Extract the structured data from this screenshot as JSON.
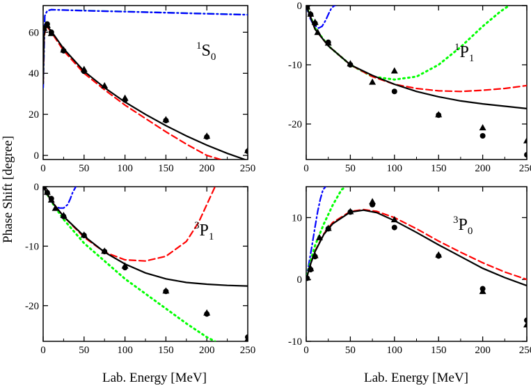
{
  "figure": {
    "ylabel": "Phase Shift [degree]",
    "xlabel_left": "Lab. Energy [MeV]",
    "xlabel_right": "Lab. Energy [MeV]"
  },
  "colors": {
    "black": "#000000",
    "red": "#ff0000",
    "green": "#00ff00",
    "blue": "#0000ff",
    "teal": "#009999"
  },
  "chart_data": [
    {
      "type": "line",
      "id": "p1s0",
      "title_sup": "1",
      "title_main": "S",
      "title_sub": "0",
      "xlim": [
        0,
        250
      ],
      "ylim": [
        -2,
        73
      ],
      "xticks": [
        0,
        50,
        100,
        150,
        200,
        250
      ],
      "yticks": [
        0,
        20,
        40,
        60
      ],
      "xlabel": "Lab. Energy [MeV]",
      "ylabel": "Phase Shift [degree]",
      "series": [
        {
          "name": "teal dash-dot",
          "style": "dashdot",
          "color": "#009999",
          "x": [
            0,
            2,
            5,
            10,
            50,
            100,
            150,
            200,
            250
          ],
          "y": [
            33,
            68,
            70.5,
            71,
            70.6,
            70.1,
            69.6,
            69.1,
            68.6
          ]
        },
        {
          "name": "blue dash-dot",
          "style": "dashdot",
          "color": "#0000ff",
          "x": [
            0,
            2,
            5,
            10,
            50,
            100,
            150,
            200,
            250
          ],
          "y": [
            33,
            68,
            70.5,
            71,
            70.5,
            70,
            69.5,
            69,
            68.5
          ]
        },
        {
          "name": "red dashed",
          "style": "dashed",
          "color": "#ff0000",
          "x": [
            0,
            1,
            3,
            5,
            10,
            25,
            50,
            75,
            100,
            125,
            150,
            175,
            200,
            225,
            250
          ],
          "y": [
            35,
            57,
            62,
            62.5,
            60,
            51,
            40,
            32,
            24.5,
            18,
            11.5,
            5.5,
            0,
            -3,
            -6
          ]
        },
        {
          "name": "black solid",
          "style": "solid",
          "color": "#000000",
          "x": [
            0,
            1,
            3,
            5,
            10,
            25,
            50,
            75,
            100,
            125,
            150,
            175,
            200,
            225,
            250
          ],
          "y": [
            35,
            58,
            62.5,
            63,
            60.5,
            52,
            41,
            33,
            26,
            20,
            14.5,
            9.5,
            5,
            1,
            -2.5
          ]
        }
      ],
      "points_circle": {
        "x": [
          1,
          5,
          10,
          25,
          50,
          100,
          150,
          200,
          250
        ],
        "y": [
          62,
          64,
          60,
          51,
          41,
          27,
          17,
          9,
          2
        ]
      },
      "points_triangle": {
        "x": [
          1,
          5,
          10,
          25,
          50,
          75,
          100,
          150,
          200,
          250
        ],
        "y": [
          62,
          63.5,
          59.5,
          51.5,
          42,
          34,
          28,
          17.5,
          9.5,
          2.5
        ]
      }
    },
    {
      "type": "line",
      "id": "p1p1",
      "title_sup": "1",
      "title_main": "P",
      "title_sub": "1",
      "xlim": [
        0,
        250
      ],
      "ylim": [
        -26,
        0
      ],
      "xticks": [
        0,
        50,
        100,
        150,
        200,
        250
      ],
      "yticks": [
        0,
        -10,
        -20
      ],
      "xlabel": "Lab. Energy [MeV]",
      "ylabel": "Phase Shift [degree]",
      "series": [
        {
          "name": "blue dash-dot",
          "style": "dashdot",
          "color": "#0000ff",
          "x": [
            0,
            3,
            8,
            14,
            18,
            22,
            25,
            28,
            31,
            33
          ],
          "y": [
            0,
            -1.7,
            -3.2,
            -3.8,
            -3.5,
            -2.5,
            -1.5,
            -0.6,
            -0.1,
            0
          ]
        },
        {
          "name": "green dotted",
          "style": "dotted",
          "color": "#00ff00",
          "x": [
            0,
            10,
            25,
            50,
            75,
            100,
            125,
            150,
            175,
            200,
            220,
            230
          ],
          "y": [
            0,
            -3.8,
            -6.8,
            -10,
            -12,
            -12.5,
            -12,
            -10,
            -7,
            -3.5,
            -1,
            0
          ]
        },
        {
          "name": "red dashed",
          "style": "dashed",
          "color": "#ff0000",
          "x": [
            0,
            10,
            25,
            50,
            75,
            100,
            125,
            150,
            175,
            200,
            225,
            250
          ],
          "y": [
            0,
            -4,
            -6.8,
            -10,
            -12,
            -13.3,
            -14,
            -14.4,
            -14.5,
            -14.3,
            -14,
            -13.5
          ]
        },
        {
          "name": "black solid",
          "style": "solid",
          "color": "#000000",
          "x": [
            0,
            10,
            25,
            50,
            75,
            100,
            125,
            150,
            175,
            200,
            225,
            250
          ],
          "y": [
            0,
            -4,
            -6.8,
            -10,
            -11.8,
            -13.3,
            -14.5,
            -15.4,
            -16.1,
            -16.6,
            -17,
            -17.4
          ]
        }
      ],
      "points_circle": {
        "x": [
          1,
          5,
          10,
          25,
          50,
          100,
          150,
          200,
          250
        ],
        "y": [
          -0.2,
          -1.5,
          -3,
          -6.2,
          -10,
          -14.5,
          -18.5,
          -22,
          -25.2
        ]
      },
      "points_triangle": {
        "x": [
          1,
          5,
          10,
          13,
          25,
          50,
          75,
          100,
          150,
          200,
          250
        ],
        "y": [
          -0.2,
          -1.4,
          -2.8,
          -4.5,
          -6.3,
          -9.8,
          -12.9,
          -11,
          -18.4,
          -20.6,
          -22.8
        ]
      }
    },
    {
      "type": "line",
      "id": "p3p1",
      "title_sup": "3",
      "title_main": "P",
      "title_sub": "1",
      "xlim": [
        0,
        250
      ],
      "ylim": [
        -26,
        0
      ],
      "xticks": [
        0,
        50,
        100,
        150,
        200,
        250
      ],
      "yticks": [
        0,
        -10,
        -20
      ],
      "xlabel": "Lab. Energy [MeV]",
      "ylabel": "Phase Shift [degree]",
      "series": [
        {
          "name": "blue dash-dot",
          "style": "dashdot",
          "color": "#0000ff",
          "x": [
            0,
            5,
            10,
            15,
            20,
            25,
            30,
            33,
            36,
            40
          ],
          "y": [
            0,
            -1.3,
            -2.5,
            -3.3,
            -3.6,
            -3.6,
            -3,
            -2.1,
            -1,
            0
          ]
        },
        {
          "name": "green dotted",
          "style": "dotted",
          "color": "#00ff00",
          "x": [
            0,
            10,
            25,
            50,
            75,
            100,
            125,
            150,
            175,
            200,
            210
          ],
          "y": [
            0,
            -2.5,
            -5.5,
            -9.5,
            -12.5,
            -15.5,
            -18,
            -20.5,
            -23,
            -25.3,
            -26
          ]
        },
        {
          "name": "red dashed",
          "style": "dashed",
          "color": "#ff0000",
          "x": [
            0,
            10,
            25,
            50,
            75,
            100,
            125,
            150,
            175,
            190,
            200,
            210
          ],
          "y": [
            0,
            -2.4,
            -5,
            -8.5,
            -11,
            -12.3,
            -12.5,
            -11.7,
            -9.2,
            -6,
            -3,
            0
          ]
        },
        {
          "name": "black solid",
          "style": "solid",
          "color": "#000000",
          "x": [
            0,
            10,
            25,
            50,
            75,
            100,
            125,
            150,
            175,
            200,
            225,
            250
          ],
          "y": [
            0,
            -2.4,
            -5,
            -8.3,
            -11,
            -13,
            -14.5,
            -15.5,
            -16.1,
            -16.4,
            -16.6,
            -16.7
          ]
        }
      ],
      "points_circle": {
        "x": [
          1,
          5,
          10,
          25,
          50,
          75,
          100,
          150,
          200,
          250
        ],
        "y": [
          0,
          -1,
          -2,
          -5,
          -8.2,
          -10.9,
          -13.6,
          -17.6,
          -21.4,
          -25.3
        ]
      },
      "points_triangle": {
        "x": [
          1,
          5,
          10,
          15,
          25,
          50,
          75,
          100,
          150,
          200,
          250
        ],
        "y": [
          0,
          -0.9,
          -2.2,
          -3.6,
          -4.8,
          -8.1,
          -10.8,
          -13.3,
          -17.5,
          -21.2,
          -25.6
        ]
      }
    },
    {
      "type": "line",
      "id": "p3p0",
      "title_sup": "3",
      "title_main": "P",
      "title_sub": "0",
      "xlim": [
        0,
        250
      ],
      "ylim": [
        -10,
        15
      ],
      "xticks": [
        0,
        50,
        100,
        150,
        200,
        250
      ],
      "yticks": [
        10,
        0,
        -10
      ],
      "xlabel": "Lab. Energy [MeV]",
      "ylabel": "Phase Shift [degree]",
      "series": [
        {
          "name": "blue dash-dot",
          "style": "dashdot",
          "color": "#0000ff",
          "x": [
            0,
            3,
            6,
            10,
            13,
            16,
            19,
            22
          ],
          "y": [
            0,
            2.5,
            5,
            8.5,
            11,
            13,
            14.5,
            15
          ]
        },
        {
          "name": "green dotted",
          "style": "dotted",
          "color": "#00ff00",
          "x": [
            0,
            5,
            10,
            20,
            30,
            40,
            45
          ],
          "y": [
            0,
            3,
            5.5,
            9,
            12,
            14.5,
            15
          ]
        },
        {
          "name": "red dashed",
          "style": "dashed",
          "color": "#ff0000",
          "x": [
            0,
            5,
            10,
            20,
            30,
            50,
            65,
            80,
            100,
            125,
            150,
            175,
            200,
            225,
            250
          ],
          "y": [
            0,
            2.5,
            4.6,
            7.4,
            9.2,
            11,
            11.3,
            11,
            10,
            8.2,
            6.2,
            4.4,
            2.7,
            1.2,
            0
          ]
        },
        {
          "name": "black solid",
          "style": "solid",
          "color": "#000000",
          "x": [
            0,
            5,
            10,
            20,
            30,
            50,
            65,
            80,
            100,
            125,
            150,
            175,
            200,
            225,
            250
          ],
          "y": [
            0,
            2.5,
            4.5,
            7.3,
            9,
            10.9,
            11.2,
            10.8,
            9.5,
            7.6,
            5.6,
            3.7,
            1.8,
            0.3,
            -1
          ]
        }
      ],
      "points_circle": {
        "x": [
          1,
          5,
          10,
          25,
          50,
          75,
          100,
          150,
          200,
          250
        ],
        "y": [
          0.2,
          1.6,
          3.7,
          8.2,
          10.9,
          12.1,
          8.4,
          3.8,
          -1.5,
          -6.6
        ]
      },
      "points_triangle": {
        "x": [
          1,
          5,
          10,
          15,
          25,
          50,
          75,
          100,
          150,
          200,
          250
        ],
        "y": [
          0.3,
          1.8,
          3.9,
          6.8,
          8.3,
          11,
          12.6,
          9.7,
          4,
          -1.9,
          -7.3
        ]
      }
    }
  ]
}
